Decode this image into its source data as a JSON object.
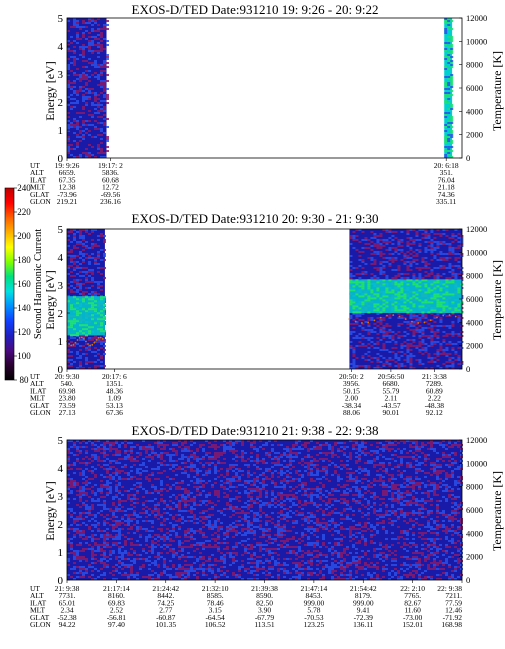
{
  "colors": {
    "background_fill": "#1a1aa8",
    "speckle": "#8a1a6a",
    "cool": "#2a50e8",
    "teal": "#00d0d0",
    "green": "#20e070",
    "orbit_trace": "#e07000"
  },
  "colorbar": {
    "label": "Second Harmonic Current",
    "ticks": [
      "80",
      "100",
      "120",
      "140",
      "160",
      "180",
      "200",
      "220",
      "240"
    ],
    "min": 80,
    "max": 240,
    "colors": [
      "#000000",
      "#2a0030",
      "#4a0a80",
      "#2020c0",
      "#1040ff",
      "#0090ff",
      "#00e0e0",
      "#00e080",
      "#80ff00",
      "#ffff00",
      "#ffb000",
      "#ff6000",
      "#ff0000",
      "#c00000"
    ]
  },
  "chart_data": [
    {
      "type": "heatmap",
      "title": "EXOS-D/TED   Date:931210  19: 9:26 - 20: 9:22",
      "ylabel": "Energy [eV]",
      "y2label": "Temperature [K]",
      "ylim": [
        0,
        5
      ],
      "yticks": [
        "0",
        "1",
        "2",
        "3",
        "4",
        "5"
      ],
      "y2lim": [
        0,
        12000
      ],
      "y2ticks": [
        "0",
        "2000",
        "4000",
        "6000",
        "8000",
        "10000",
        "12000"
      ],
      "data_segments": [
        {
          "t_start": 0.0,
          "t_end": 0.1,
          "dominant": "dark-blue/purple",
          "band_energy": null
        },
        {
          "t_start": 0.955,
          "t_end": 0.975,
          "dominant": "cyan/green",
          "band_energy": [
            0,
            5
          ]
        }
      ],
      "time_table": {
        "row_labels": [
          "UT",
          "ALT",
          "ILAT",
          "MLT",
          "GLAT",
          "GLON"
        ],
        "columns": [
          {
            "t": 0.0,
            "values": [
              "19: 9:26",
              "6659.",
              "67.35",
              "12.38",
              "-73.96",
              "219.21"
            ]
          },
          {
            "t": 0.11,
            "values": [
              "19:17: 2",
              "5836.",
              "60.68",
              "12.72",
              "-69.56",
              "236.16"
            ]
          },
          {
            "t": 0.96,
            "values": [
              "20: 6:18",
              "351.",
              "76.04",
              "21.18",
              "74.36",
              "335.11"
            ]
          }
        ]
      }
    },
    {
      "type": "heatmap",
      "title": "EXOS-D/TED   Date:931210  20: 9:30 - 21: 9:30",
      "ylabel": "Energy [eV]",
      "y2label": "Temperature [K]",
      "ylim": [
        0,
        5
      ],
      "yticks": [
        "0",
        "1",
        "2",
        "3",
        "4",
        "5"
      ],
      "y2lim": [
        0,
        12000
      ],
      "y2ticks": [
        "0",
        "2000",
        "4000",
        "6000",
        "8000",
        "10000",
        "12000"
      ],
      "data_segments": [
        {
          "t_start": 0.0,
          "t_end": 0.096,
          "dominant": "blue with cyan band",
          "band_energy": [
            1.2,
            2.6
          ]
        },
        {
          "t_start": 0.715,
          "t_end": 1.0,
          "dominant": "blue with cyan band",
          "band_energy": [
            2.0,
            3.2
          ]
        }
      ],
      "time_table": {
        "row_labels": [
          "UT",
          "ALT",
          "ILAT",
          "MLT",
          "GLAT",
          "GLON"
        ],
        "columns": [
          {
            "t": 0.0,
            "values": [
              "20: 9:30",
              "540.",
              "69.98",
              "23.80",
              "73.59",
              "27.13"
            ]
          },
          {
            "t": 0.12,
            "values": [
              "20:17: 6",
              "1351.",
              "48.36",
              "1.09",
              "53.13",
              "67.36"
            ]
          },
          {
            "t": 0.72,
            "values": [
              "20:50: 2",
              "3956.",
              "50.15",
              "2.00",
              "-38.34",
              "88.06"
            ]
          },
          {
            "t": 0.82,
            "values": [
              "20:56:50",
              "6680.",
              "55.79",
              "2.11",
              "-43.57",
              "90.01"
            ]
          },
          {
            "t": 0.93,
            "values": [
              "21: 3:38",
              "7289.",
              "60.89",
              "2.22",
              "-48.38",
              "92.12"
            ]
          }
        ]
      }
    },
    {
      "type": "heatmap",
      "title": "EXOS-D/TED   Date:931210  21: 9:38 - 22: 9:38",
      "ylabel": "Energy [eV]",
      "y2label": "Temperature [K]",
      "ylim": [
        0,
        5
      ],
      "yticks": [
        "0",
        "1",
        "2",
        "3",
        "4",
        "5"
      ],
      "y2lim": [
        0,
        12000
      ],
      "y2ticks": [
        "0",
        "2000",
        "4000",
        "6000",
        "8000",
        "10000",
        "12000"
      ],
      "data_segments": [
        {
          "t_start": 0.0,
          "t_end": 1.0,
          "dominant": "dark-blue/purple",
          "band_energy": null
        }
      ],
      "time_table": {
        "row_labels": [
          "UT",
          "ALT",
          "ILAT",
          "MLT",
          "GLAT",
          "GLON"
        ],
        "columns": [
          {
            "t": 0.0,
            "values": [
              "21: 9:38",
              "7731.",
              "65.01",
              "2.34",
              "-52.38",
              "94.22"
            ]
          },
          {
            "t": 0.125,
            "values": [
              "21:17:14",
              "8160.",
              "69.83",
              "2.52",
              "-56.81",
              "97.40"
            ]
          },
          {
            "t": 0.25,
            "values": [
              "21:24:42",
              "8442.",
              "74.25",
              "2.77",
              "-60.87",
              "101.35"
            ]
          },
          {
            "t": 0.375,
            "values": [
              "21:32:10",
              "8585.",
              "78.46",
              "3.15",
              "-64.54",
              "106.52"
            ]
          },
          {
            "t": 0.5,
            "values": [
              "21:39:38",
              "8590.",
              "82.50",
              "3.90",
              "-67.79",
              "113.51"
            ]
          },
          {
            "t": 0.625,
            "values": [
              "21:47:14",
              "8453.",
              "999.00",
              "5.78",
              "-70.53",
              "123.25"
            ]
          },
          {
            "t": 0.75,
            "values": [
              "21:54:42",
              "8179.",
              "999.00",
              "9.41",
              "-72.39",
              "136.11"
            ]
          },
          {
            "t": 0.875,
            "values": [
              "22: 2:10",
              "7765.",
              "82.67",
              "11.60",
              "-73.00",
              "152.01"
            ]
          },
          {
            "t": 1.0,
            "values": [
              "22: 9:38",
              "7211.",
              "77.59",
              "12.46",
              "-71.92",
              "168.98"
            ]
          }
        ]
      }
    }
  ]
}
